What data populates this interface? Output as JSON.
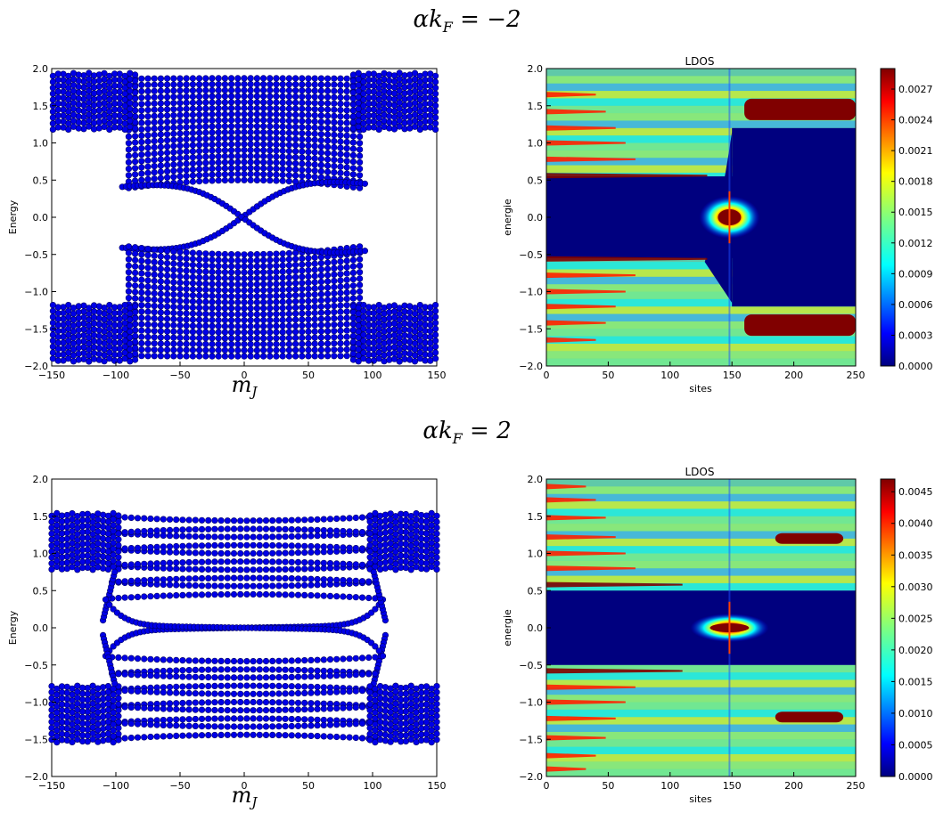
{
  "rows": [
    {
      "title_lhs": "αk",
      "title_sub": "F",
      "title_rhs": " = −2"
    },
    {
      "title_lhs": "αk",
      "title_sub": "F",
      "title_rhs": " = 2"
    }
  ],
  "colors": {
    "marker_fill": "#0000e6",
    "marker_edge": "#000066",
    "hot": "#800000",
    "cold": "#00007f"
  },
  "chart_data": [
    {
      "type": "scatter",
      "title": "",
      "xlabel": "m_J",
      "ylabel": "Energy",
      "xlim": [
        -150,
        150
      ],
      "ylim": [
        -2.0,
        2.0
      ],
      "xticks": [
        "−150",
        "−100",
        "−50",
        "0",
        "50",
        "100",
        "150"
      ],
      "yticks": [
        "2.0",
        "1.5",
        "1.0",
        "0.5",
        "0.0",
        "−0.5",
        "−1.0",
        "−1.5",
        "−2.0"
      ],
      "band_params": {
        "gap_center": 0.5,
        "bulk_edge": 1.2,
        "edge_crossing_mj": 95,
        "bound_level_count": 18
      }
    },
    {
      "type": "heatmap",
      "title": "LDOS",
      "xlabel": "sites",
      "ylabel": "energie",
      "xlim": [
        0,
        250
      ],
      "ylim": [
        -2.0,
        2.0
      ],
      "xticks": [
        "0",
        "50",
        "100",
        "150",
        "200",
        "250"
      ],
      "yticks": [
        "2.0",
        "1.5",
        "1.0",
        "0.5",
        "0.0",
        "−0.5",
        "−1.0",
        "−1.5",
        "−2.0"
      ],
      "colorbar_ticks": [
        "0.0027",
        "0.0024",
        "0.0021",
        "0.0018",
        "0.0015",
        "0.0012",
        "0.0009",
        "0.0006",
        "0.0003",
        "0.0000"
      ],
      "colorbar_max": 0.0029,
      "features": {
        "gap": 0.55,
        "zero_mode_site": 148,
        "interface_site": 148,
        "hot_band_sites": [
          160,
          250
        ],
        "hot_band_energy": 1.45
      }
    },
    {
      "type": "scatter",
      "title": "",
      "xlabel": "m_J",
      "ylabel": "Energy",
      "xlim": [
        -150,
        150
      ],
      "ylim": [
        -2.0,
        2.0
      ],
      "xticks": [
        "−150",
        "−100",
        "−50",
        "0",
        "50",
        "100",
        "150"
      ],
      "yticks": [
        "2.0",
        "1.5",
        "1.0",
        "0.5",
        "0.0",
        "−0.5",
        "−1.0",
        "−1.5",
        "−2.0"
      ],
      "band_params": {
        "gap_center": 0.45,
        "bulk_edge": 0.8,
        "edge_crossing_mj": 108,
        "bound_level_count": 10
      }
    },
    {
      "type": "heatmap",
      "title": "LDOS",
      "xlabel": "sites",
      "ylabel": "energie",
      "xlim": [
        0,
        250
      ],
      "ylim": [
        -2.0,
        2.0
      ],
      "xticks": [
        "0",
        "50",
        "100",
        "150",
        "200",
        "250"
      ],
      "yticks": [
        "2.0",
        "1.5",
        "1.0",
        "0.5",
        "0.0",
        "−0.5",
        "−1.0",
        "−1.5",
        "−2.0"
      ],
      "colorbar_ticks": [
        "0.0045",
        "0.0040",
        "0.0035",
        "0.0030",
        "0.0025",
        "0.0020",
        "0.0015",
        "0.0010",
        "0.0005",
        "0.0000"
      ],
      "colorbar_max": 0.0047,
      "features": {
        "gap": 0.5,
        "zero_mode_site": 148,
        "interface_site": 148,
        "hot_band_sites": [
          185,
          240
        ],
        "hot_band_energy": 1.2
      }
    }
  ]
}
